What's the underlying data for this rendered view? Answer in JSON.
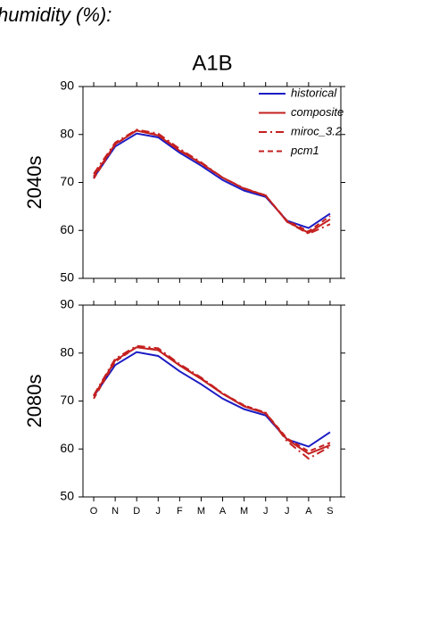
{
  "heading": "humidity (%):",
  "chart_data": [
    {
      "type": "line",
      "title": "A1B",
      "ylabel": "2040s",
      "ylim": [
        50,
        90
      ],
      "yticks": [
        50,
        60,
        70,
        80,
        90
      ],
      "legend": "upper right",
      "series": [
        {
          "name": "historical",
          "color": "#1c1cc4",
          "dash": "none",
          "values": [
            71,
            77.5,
            80.2,
            79.4,
            76.2,
            73.5,
            70.5,
            68.3,
            67,
            62,
            60.5,
            63.5
          ]
        },
        {
          "name": "composite",
          "color": "#c42020",
          "dash": "none",
          "values": [
            71.3,
            78,
            80.8,
            79.8,
            76.6,
            74,
            71,
            68.7,
            67.3,
            61.8,
            59.5,
            62.3
          ]
        },
        {
          "name": "miroc_3.2",
          "color": "#c42020",
          "dash": "9,4,2,4",
          "values": [
            71.8,
            78.3,
            81,
            80.2,
            77,
            74.2,
            71,
            68.8,
            67.3,
            61.8,
            59.3,
            61.3
          ]
        },
        {
          "name": "pcm1",
          "color": "#c42020",
          "dash": "6,4",
          "values": [
            70.8,
            77.9,
            80.9,
            79.9,
            76.8,
            73.9,
            71,
            68.7,
            67.2,
            62,
            59.8,
            63
          ]
        }
      ]
    },
    {
      "type": "line",
      "ylabel": "2080s",
      "categories": [
        "O",
        "N",
        "D",
        "J",
        "F",
        "M",
        "A",
        "M",
        "J",
        "J",
        "A",
        "S"
      ],
      "ylim": [
        50,
        90
      ],
      "yticks": [
        50,
        60,
        70,
        80,
        90
      ],
      "series": [
        {
          "color": "#1c1cc4",
          "dash": "none",
          "values": [
            71,
            77.5,
            80.2,
            79.4,
            76.2,
            73.5,
            70.5,
            68.3,
            67,
            62,
            60.5,
            63.5
          ]
        },
        {
          "color": "#c42020",
          "dash": "none",
          "values": [
            71,
            78.5,
            81.2,
            80.6,
            77.4,
            74.6,
            71.5,
            68.9,
            67.4,
            62,
            59,
            60.8
          ]
        },
        {
          "color": "#c42020",
          "dash": "9,4,2,4",
          "values": [
            71.2,
            78.8,
            81.5,
            81,
            77.7,
            74.9,
            71.6,
            69,
            67.6,
            61.6,
            58,
            60.5
          ]
        },
        {
          "color": "#c42020",
          "dash": "6,4",
          "values": [
            70.5,
            78.2,
            81.3,
            80.7,
            77.5,
            74.7,
            71.6,
            69.1,
            67.5,
            62.2,
            59.5,
            61.3
          ]
        }
      ]
    }
  ]
}
